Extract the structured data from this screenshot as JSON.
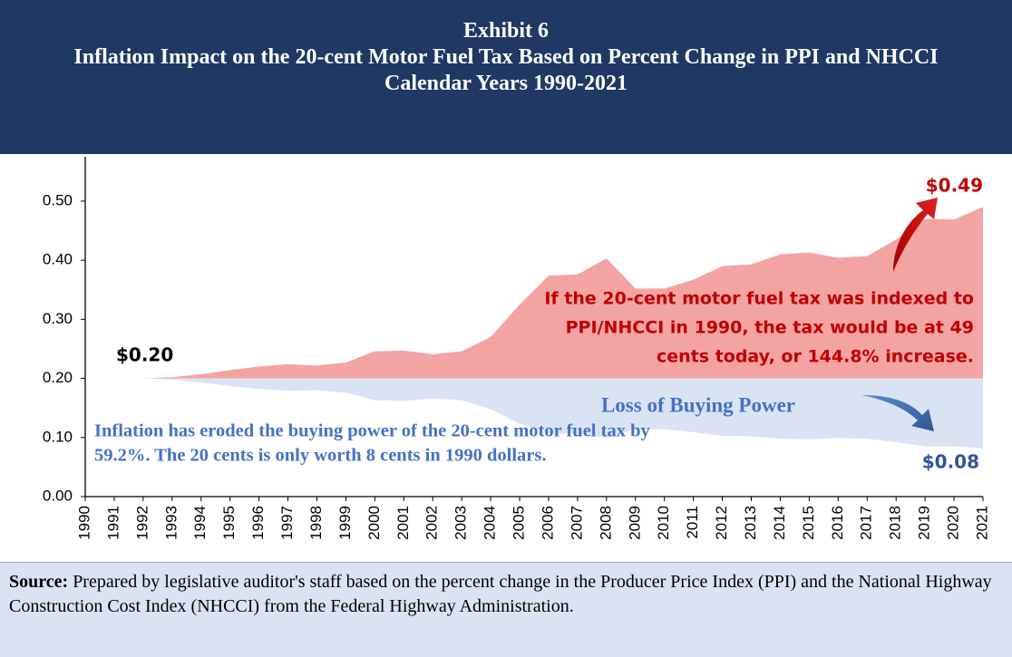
{
  "chart_data": {
    "type": "area",
    "title": "Exhibit 6",
    "subtitle": "Inflation Impact on the 20-cent Motor Fuel Tax Based on Percent Change in PPI and NHCCI",
    "subtitle2": "Calendar Years 1990-2021",
    "categories": [
      "1990",
      "1991",
      "1992",
      "1993",
      "1994",
      "1995",
      "1996",
      "1997",
      "1998",
      "1999",
      "2000",
      "2001",
      "2002",
      "2003",
      "2004",
      "2005",
      "2006",
      "2007",
      "2008",
      "2009",
      "2010",
      "2011",
      "2012",
      "2013",
      "2014",
      "2015",
      "2016",
      "2017",
      "2018",
      "2019",
      "2020",
      "2021"
    ],
    "baseline": 0.2,
    "series": [
      {
        "color": "#f4a3a3",
        "values": [
          0.2,
          0.2,
          0.2,
          0.202,
          0.207,
          0.214,
          0.22,
          0.224,
          0.222,
          0.227,
          0.246,
          0.247,
          0.241,
          0.246,
          0.27,
          0.325,
          0.374,
          0.376,
          0.403,
          0.352,
          0.352,
          0.367,
          0.39,
          0.393,
          0.41,
          0.413,
          0.404,
          0.407,
          0.435,
          0.47,
          0.469,
          0.49
        ]
      },
      {
        "color": "#dae3f3",
        "values": [
          0.2,
          0.2,
          0.2,
          0.198,
          0.193,
          0.187,
          0.182,
          0.179,
          0.18,
          0.176,
          0.163,
          0.162,
          0.166,
          0.163,
          0.148,
          0.123,
          0.107,
          0.106,
          0.099,
          0.114,
          0.114,
          0.109,
          0.103,
          0.102,
          0.098,
          0.097,
          0.099,
          0.098,
          0.092,
          0.085,
          0.085,
          0.082
        ]
      }
    ],
    "ylim": [
      0,
      0.575
    ],
    "yticks": [
      {
        "value": 0,
        "label": "0.00"
      },
      {
        "value": 0.1,
        "label": "0.10"
      },
      {
        "value": 0.2,
        "label": "0.20"
      },
      {
        "value": 0.3,
        "label": "0.30"
      },
      {
        "value": 0.4,
        "label": "0.40"
      },
      {
        "value": 0.5,
        "label": "0.50"
      }
    ],
    "annotations": [
      {
        "text": [
          "$0.20"
        ],
        "color": "#000000"
      },
      {
        "text": [
          "$0.49"
        ],
        "color": "#c00000"
      },
      {
        "text": [
          "$0.08"
        ],
        "color": "#2f5597"
      },
      {
        "text": [
          "If the 20-cent motor fuel tax was indexed to",
          "PPI/NHCCI in 1990, the tax would be at 49",
          "cents today, or 144.8% increase."
        ],
        "color": "#c00000"
      },
      {
        "text": [
          "Loss of Buying Power"
        ],
        "color": "#4472c4"
      },
      {
        "text": [
          "Inflation has eroded the buying power of the 20-cent motor fuel tax by",
          "59.2%.  The 20 cents is only worth 8 cents in 1990 dollars."
        ],
        "color": "#4472c4"
      }
    ]
  },
  "footer": {
    "label": "Source:",
    "text": " Prepared by legislative auditor's staff based on the percent change in the Producer Price Index (PPI) and the National Highway Construction Cost Index (NHCCI) from the Federal Highway Administration."
  }
}
